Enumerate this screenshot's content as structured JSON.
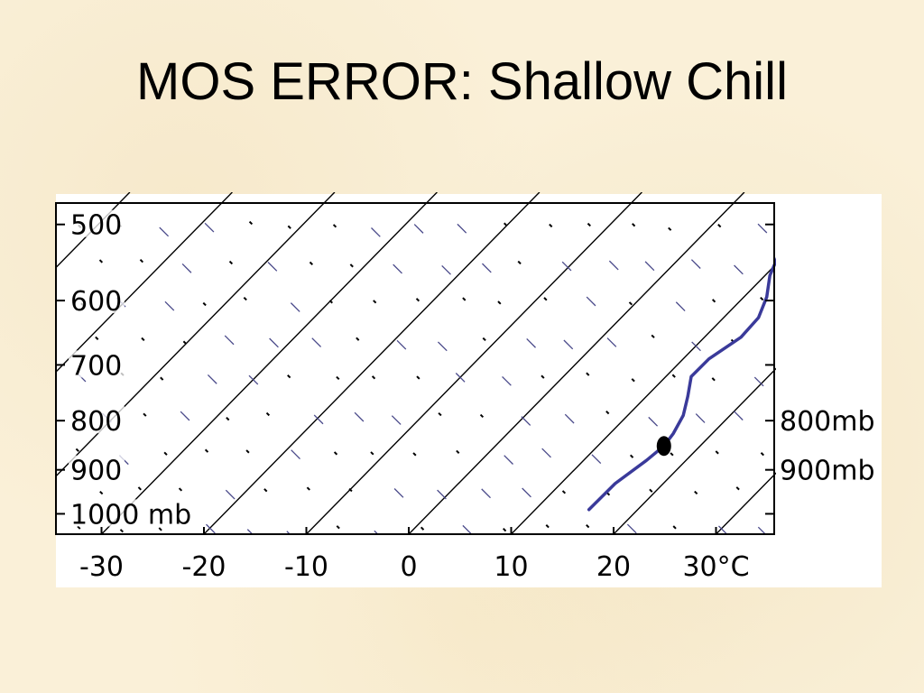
{
  "slide": {
    "title": "MOS ERROR: Shallow Chill"
  },
  "chart_data": {
    "type": "line",
    "title": "",
    "x_tick_labels": [
      "-30",
      "-20",
      "-10",
      "0",
      "10",
      "20",
      "30°C"
    ],
    "x_ticks": [
      -30,
      -20,
      -10,
      0,
      10,
      20,
      30
    ],
    "xlim": [
      -32,
      32
    ],
    "y_tick_labels": [
      "500",
      "600",
      "700",
      "800",
      "900",
      "1000 mb"
    ],
    "y_ticks": [
      500,
      600,
      700,
      800,
      900,
      1000
    ],
    "ylim": [
      1050,
      475
    ],
    "y_scale": "log-pressure",
    "isotherms_deg_c": [
      -80,
      -70,
      -60,
      -50,
      -40,
      -30,
      -20,
      -10,
      0,
      10,
      20,
      30,
      40
    ],
    "series": [
      {
        "color": "#3a3a9a",
        "points": [
          {
            "temp": 7.0,
            "p": 475
          },
          {
            "temp": 7.5,
            "p": 500
          },
          {
            "temp": 8.5,
            "p": 530
          },
          {
            "temp": 10.0,
            "p": 565
          },
          {
            "temp": 11.8,
            "p": 595
          },
          {
            "temp": 13.0,
            "p": 625
          },
          {
            "temp": 13.2,
            "p": 655
          },
          {
            "temp": 12.2,
            "p": 690
          },
          {
            "temp": 12.2,
            "p": 720
          },
          {
            "temp": 13.8,
            "p": 755
          },
          {
            "temp": 15.2,
            "p": 790
          },
          {
            "temp": 16.0,
            "p": 825
          },
          {
            "temp": 16.3,
            "p": 850
          },
          {
            "temp": 16.0,
            "p": 880
          },
          {
            "temp": 15.2,
            "p": 930
          },
          {
            "temp": 15.2,
            "p": 990
          }
        ]
      }
    ],
    "marker": {
      "temp": 16.3,
      "p": 850,
      "color": "#000000"
    },
    "right_labels": [
      {
        "text": "800mb",
        "p": 800
      },
      {
        "text": "900mb",
        "p": 900
      }
    ],
    "grid": true,
    "colors": {
      "frame": "#000000",
      "isotherm": "#000000",
      "barb": "#4a4a8a",
      "plot_bg": "#ffffff"
    }
  }
}
